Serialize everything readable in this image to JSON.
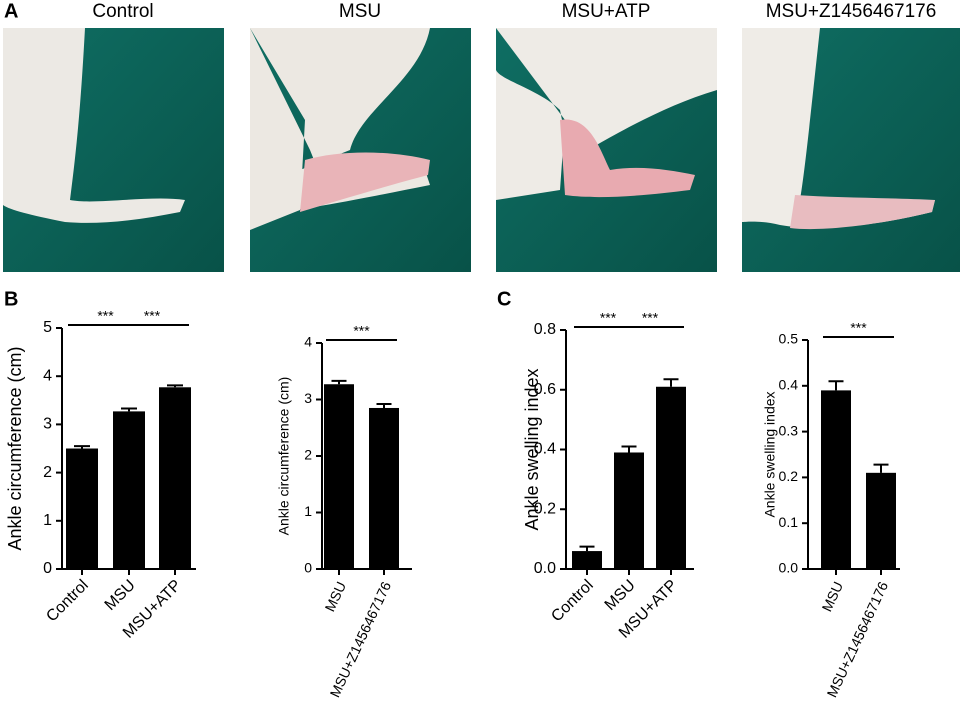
{
  "panel_labels": [
    "A",
    "B",
    "C"
  ],
  "photos": [
    "Control",
    "MSU",
    "MSU+ATP",
    "MSU+Z1456467176"
  ],
  "chart_data": [
    {
      "type": "bar",
      "ylabel": "Ankle circumference (cm)",
      "categories": [
        "Control",
        "MSU",
        "MSU+ATP"
      ],
      "values": [
        2.5,
        3.27,
        3.77
      ],
      "errors": [
        0.05,
        0.06,
        0.04
      ],
      "color": "#000000",
      "ylim": [
        0,
        5
      ],
      "yticks": [
        0,
        1,
        2,
        3,
        4,
        5
      ],
      "annotations": [
        {
          "text": "***",
          "from": 0,
          "to": 1
        },
        {
          "text": "***",
          "from": 1,
          "to": 2
        }
      ]
    },
    {
      "type": "bar",
      "ylabel": "Ankle circumference (cm)",
      "categories": [
        "MSU",
        "MSU+Z1456467176"
      ],
      "values": [
        3.27,
        2.85
      ],
      "errors": [
        0.06,
        0.07
      ],
      "color": "#000000",
      "ylim": [
        0,
        4
      ],
      "yticks": [
        0,
        1,
        2,
        3,
        4
      ],
      "annotations": [
        {
          "text": "***",
          "from": 0,
          "to": 1
        }
      ]
    },
    {
      "type": "bar",
      "ylabel": "Ankle swelling index",
      "categories": [
        "Control",
        "MSU",
        "MSU+ATP"
      ],
      "values": [
        0.06,
        0.39,
        0.61
      ],
      "errors": [
        0.015,
        0.02,
        0.025
      ],
      "color": "#000000",
      "ylim": [
        0,
        0.8
      ],
      "yticks": [
        {
          "value": 0,
          "label": "0.0"
        },
        0.2,
        0.4,
        0.6,
        0.8
      ],
      "annotations": [
        {
          "text": "***",
          "from": 0,
          "to": 1
        },
        {
          "text": "***",
          "from": 1,
          "to": 2
        }
      ]
    },
    {
      "type": "bar",
      "ylabel": "Ankle swelling index",
      "categories": [
        "MSU",
        "MSU+Z1456467176"
      ],
      "values": [
        0.39,
        0.21
      ],
      "errors": [
        0.02,
        0.018
      ],
      "color": "#000000",
      "ylim": [
        0,
        0.5
      ],
      "yticks": [
        {
          "value": 0,
          "label": "0.0"
        },
        0.1,
        0.2,
        0.3,
        0.4,
        0.5
      ],
      "annotations": [
        {
          "text": "***",
          "from": 0,
          "to": 1
        }
      ]
    }
  ]
}
